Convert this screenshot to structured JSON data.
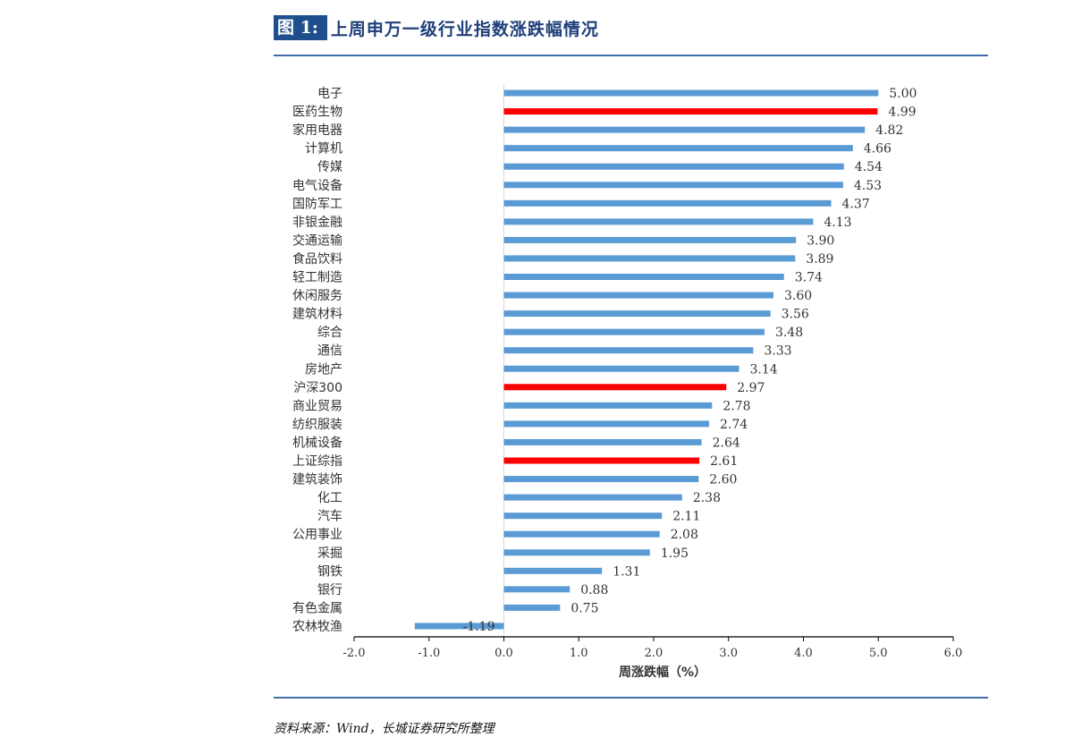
{
  "figure": {
    "label": "图 1:",
    "title": "上周申万一级行业指数涨跌幅情况",
    "source": "资料来源：Wind，长城证券研究所整理"
  },
  "colors": {
    "normal": "#5b9bd5",
    "highlight": "#ff0000",
    "axis": "#000000",
    "label": "#333333"
  },
  "chart_data": {
    "type": "bar",
    "orientation": "horizontal",
    "title": "上周申万一级行业指数涨跌幅情况",
    "xlabel": "周涨跌幅（%）",
    "ylabel": "",
    "xlim": [
      -2.0,
      6.0
    ],
    "xticks": [
      "-2.0",
      "-1.0",
      "0.0",
      "1.0",
      "2.0",
      "3.0",
      "4.0",
      "5.0",
      "6.0"
    ],
    "grid": false,
    "categories": [
      "电子",
      "医药生物",
      "家用电器",
      "计算机",
      "传媒",
      "电气设备",
      "国防军工",
      "非银金融",
      "交通运输",
      "食品饮料",
      "轻工制造",
      "休闲服务",
      "建筑材料",
      "综合",
      "通信",
      "房地产",
      "沪深300",
      "商业贸易",
      "纺织服装",
      "机械设备",
      "上证综指",
      "建筑装饰",
      "化工",
      "汽车",
      "公用事业",
      "采掘",
      "钢铁",
      "银行",
      "有色金属",
      "农林牧渔"
    ],
    "values": [
      5.0,
      4.99,
      4.82,
      4.66,
      4.54,
      4.53,
      4.37,
      4.13,
      3.9,
      3.89,
      3.74,
      3.6,
      3.56,
      3.48,
      3.33,
      3.14,
      2.97,
      2.78,
      2.74,
      2.64,
      2.61,
      2.6,
      2.38,
      2.11,
      2.08,
      1.95,
      1.31,
      0.88,
      0.75,
      -1.19
    ],
    "value_labels": [
      "5.00",
      "4.99",
      "4.82",
      "4.66",
      "4.54",
      "4.53",
      "4.37",
      "4.13",
      "3.90",
      "3.89",
      "3.74",
      "3.60",
      "3.56",
      "3.48",
      "3.33",
      "3.14",
      "2.97",
      "2.78",
      "2.74",
      "2.64",
      "2.61",
      "2.60",
      "2.38",
      "2.11",
      "2.08",
      "1.95",
      "1.31",
      "0.88",
      "0.75",
      "-1.19"
    ],
    "highlighted": [
      "医药生物",
      "沪深300",
      "上证综指"
    ]
  }
}
